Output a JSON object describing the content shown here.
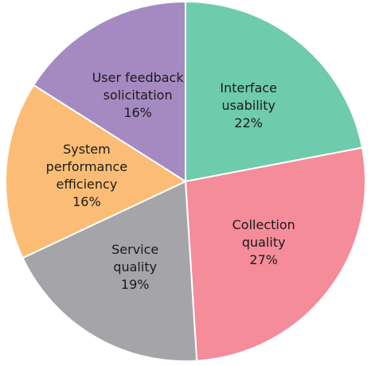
{
  "chart_data": {
    "type": "pie",
    "title": "",
    "start_angle_deg": 0,
    "direction": "clockwise",
    "slices": [
      {
        "label_lines": [
          "Interface",
          "usability"
        ],
        "value_text": "22%",
        "value": 22,
        "color": "#6ecbab"
      },
      {
        "label_lines": [
          "Collection",
          "quality"
        ],
        "value_text": "27%",
        "value": 27,
        "color": "#f48c9a"
      },
      {
        "label_lines": [
          "Service",
          "quality"
        ],
        "value_text": "19%",
        "value": 19,
        "color": "#a5a5a9"
      },
      {
        "label_lines": [
          "System",
          "performance",
          "efficiency"
        ],
        "value_text": "16%",
        "value": 16,
        "color": "#fbbd75"
      },
      {
        "label_lines": [
          "User feedback",
          "solicitation"
        ],
        "value_text": "16%",
        "value": 16,
        "color": "#a58ac2"
      }
    ]
  }
}
